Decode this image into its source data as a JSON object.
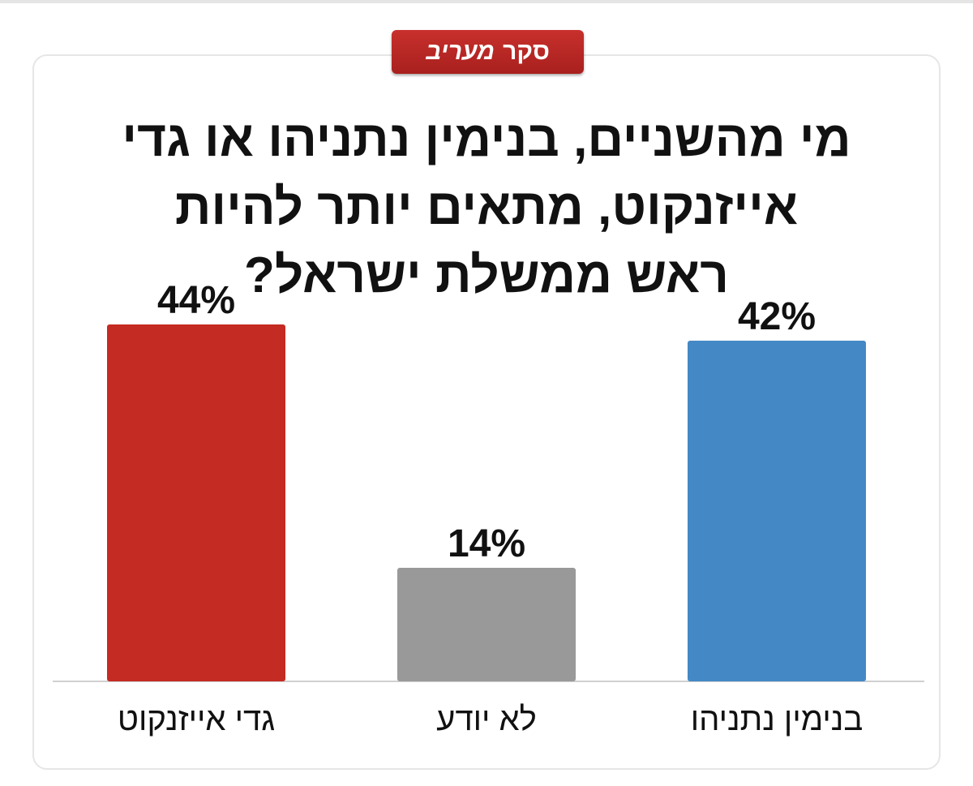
{
  "badge": {
    "prefix": "סקר",
    "brand": "מעריב"
  },
  "colors": {
    "badge": "#b82824",
    "gadi": "#c42b22",
    "unknown": "#999999",
    "netanyahu": "#4588c6"
  },
  "chart_data": {
    "type": "bar",
    "title": "מי מהשניים, בנימין נתניהו או גדי אייזנקוט, מתאים יותר להיות ראש ממשלת ישראל?",
    "categories": [
      "גדי אייזנקוט",
      "לא יודע",
      "בנימין נתניהו"
    ],
    "values": [
      44,
      14,
      42
    ],
    "value_labels": [
      "44%",
      "14%",
      "42%"
    ],
    "colors": [
      "#c42b22",
      "#999999",
      "#4588c6"
    ],
    "ylim": [
      0,
      44
    ],
    "grid": false,
    "xlabel": "",
    "ylabel": ""
  }
}
